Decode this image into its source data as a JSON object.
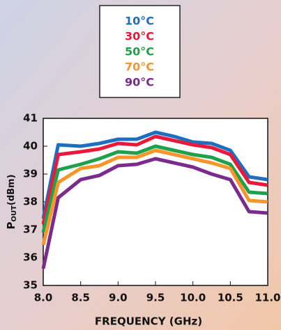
{
  "chart_data": {
    "type": "line",
    "xlabel": "FREQUENCY (GHz)",
    "ylabel": {
      "main": "P",
      "sub": "OUT",
      "unit": "(dBm)"
    },
    "x": [
      8.0,
      8.2,
      8.5,
      8.75,
      9.0,
      9.25,
      9.5,
      9.75,
      10.0,
      10.25,
      10.5,
      10.75,
      11.0
    ],
    "series": [
      {
        "name": "10°C",
        "color": "#1f6fc0",
        "values": [
          37.4,
          40.05,
          40.0,
          40.1,
          40.25,
          40.25,
          40.5,
          40.35,
          40.15,
          40.1,
          39.85,
          38.9,
          38.8
        ]
      },
      {
        "name": "30°C",
        "color": "#e8193a",
        "values": [
          37.2,
          39.7,
          39.8,
          39.9,
          40.1,
          40.05,
          40.35,
          40.2,
          40.05,
          39.95,
          39.7,
          38.7,
          38.6
        ]
      },
      {
        "name": "50°C",
        "color": "#1fa04a",
        "values": [
          36.9,
          39.15,
          39.35,
          39.55,
          39.8,
          39.75,
          40.0,
          39.85,
          39.7,
          39.6,
          39.35,
          38.35,
          38.3
        ]
      },
      {
        "name": "70°C",
        "color": "#f7942a",
        "values": [
          36.45,
          38.7,
          39.2,
          39.3,
          39.6,
          39.6,
          39.85,
          39.7,
          39.55,
          39.4,
          39.2,
          38.05,
          38.0
        ]
      },
      {
        "name": "90°C",
        "color": "#7b2a8e",
        "values": [
          35.6,
          38.15,
          38.8,
          38.95,
          39.3,
          39.35,
          39.55,
          39.4,
          39.25,
          39.0,
          38.8,
          37.65,
          37.6
        ]
      }
    ],
    "xlim": [
      8.0,
      11.0
    ],
    "xticks": [
      {
        "value": 8,
        "label": "8.0"
      },
      8.5,
      {
        "value": 9,
        "label": "9.0"
      },
      9.5,
      {
        "value": 10,
        "label": "10.0"
      },
      10.5,
      {
        "value": 11,
        "label": "11.0"
      }
    ],
    "ylim": [
      35,
      41
    ],
    "yticks": [
      35,
      36,
      37,
      38,
      39,
      40,
      41
    ],
    "legend": "top-center"
  }
}
